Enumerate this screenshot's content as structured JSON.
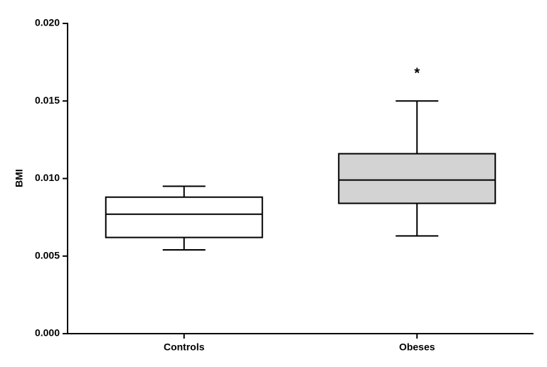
{
  "chart_data": {
    "type": "box",
    "ylabel": "BMI",
    "categories": [
      "Controls",
      "Obeses"
    ],
    "boxes": [
      {
        "min": 0.0054,
        "q1": 0.0062,
        "median": 0.0077,
        "q3": 0.0088,
        "max": 0.0095,
        "color": "#ffffff"
      },
      {
        "min": 0.0063,
        "q1": 0.0084,
        "median": 0.0099,
        "q3": 0.0116,
        "max": 0.015,
        "color": "#d3d3d3"
      }
    ],
    "annotations": [
      {
        "text": "*",
        "category": "Obeses"
      }
    ],
    "ylim": [
      0,
      0.02
    ],
    "yticks": [
      {
        "value": 0,
        "label": "0.000"
      },
      {
        "value": 0.005,
        "label": "0.005"
      },
      {
        "value": 0.01,
        "label": "0.010"
      },
      {
        "value": 0.015,
        "label": "0.015"
      },
      {
        "value": 0.02,
        "label": "0.020"
      }
    ]
  }
}
